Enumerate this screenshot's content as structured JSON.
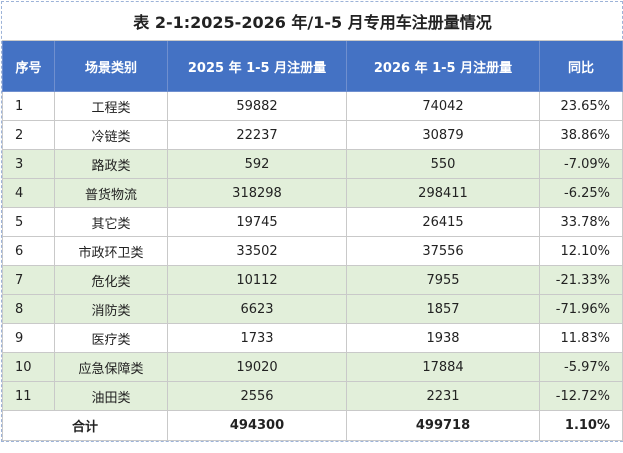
{
  "table": {
    "title": "表 2-1:2025-2026 年/1-5 月专用车注册量情况",
    "columns": [
      "序号",
      "场景类别",
      "2025 年 1-5 月注册量",
      "2026 年 1-5 月注册量",
      "同比"
    ],
    "rows": [
      [
        "1",
        "工程类",
        "59882",
        "74042",
        "23.65%"
      ],
      [
        "2",
        "冷链类",
        "22237",
        "30879",
        "38.86%"
      ],
      [
        "3",
        "路政类",
        "592",
        "550",
        "-7.09%"
      ],
      [
        "4",
        "普货物流",
        "318298",
        "298411",
        "-6.25%"
      ],
      [
        "5",
        "其它类",
        "19745",
        "26415",
        "33.78%"
      ],
      [
        "6",
        "市政环卫类",
        "33502",
        "37556",
        "12.10%"
      ],
      [
        "7",
        "危化类",
        "10112",
        "7955",
        "-21.33%"
      ],
      [
        "8",
        "消防类",
        "6623",
        "1857",
        "-71.96%"
      ],
      [
        "9",
        "医疗类",
        "1733",
        "1938",
        "11.83%"
      ],
      [
        "10",
        "应急保障类",
        "19020",
        "17884",
        "-5.97%"
      ],
      [
        "11",
        "油田类",
        "2556",
        "2231",
        "-12.72%"
      ]
    ],
    "total": [
      "合计",
      "494300",
      "499718",
      "1.10%"
    ]
  }
}
